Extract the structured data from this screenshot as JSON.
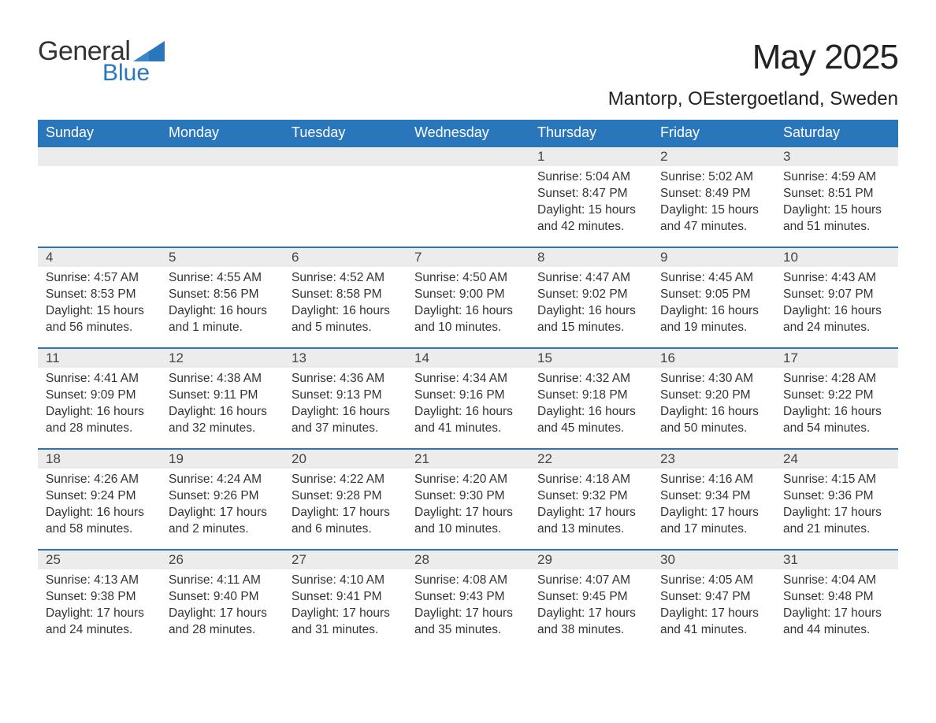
{
  "colors": {
    "brand_blue": "#2a76bb",
    "header_bg": "#2a76bb",
    "header_text": "#ffffff",
    "daynum_bg": "#ececec",
    "daynum_border": "#2a76bb",
    "body_text": "#333333",
    "page_bg": "#ffffff"
  },
  "typography": {
    "month_title_size_pt": 33,
    "location_size_pt": 18,
    "dayheader_size_pt": 14,
    "cell_size_pt": 12
  },
  "logo": {
    "line1": "General",
    "line2": "Blue"
  },
  "title": "May 2025",
  "location": "Mantorp, OEstergoetland, Sweden",
  "day_headers": [
    "Sunday",
    "Monday",
    "Tuesday",
    "Wednesday",
    "Thursday",
    "Friday",
    "Saturday"
  ],
  "weeks": [
    [
      null,
      null,
      null,
      null,
      {
        "n": "1",
        "sunrise": "Sunrise: 5:04 AM",
        "sunset": "Sunset: 8:47 PM",
        "daylight1": "Daylight: 15 hours",
        "daylight2": "and 42 minutes."
      },
      {
        "n": "2",
        "sunrise": "Sunrise: 5:02 AM",
        "sunset": "Sunset: 8:49 PM",
        "daylight1": "Daylight: 15 hours",
        "daylight2": "and 47 minutes."
      },
      {
        "n": "3",
        "sunrise": "Sunrise: 4:59 AM",
        "sunset": "Sunset: 8:51 PM",
        "daylight1": "Daylight: 15 hours",
        "daylight2": "and 51 minutes."
      }
    ],
    [
      {
        "n": "4",
        "sunrise": "Sunrise: 4:57 AM",
        "sunset": "Sunset: 8:53 PM",
        "daylight1": "Daylight: 15 hours",
        "daylight2": "and 56 minutes."
      },
      {
        "n": "5",
        "sunrise": "Sunrise: 4:55 AM",
        "sunset": "Sunset: 8:56 PM",
        "daylight1": "Daylight: 16 hours",
        "daylight2": "and 1 minute."
      },
      {
        "n": "6",
        "sunrise": "Sunrise: 4:52 AM",
        "sunset": "Sunset: 8:58 PM",
        "daylight1": "Daylight: 16 hours",
        "daylight2": "and 5 minutes."
      },
      {
        "n": "7",
        "sunrise": "Sunrise: 4:50 AM",
        "sunset": "Sunset: 9:00 PM",
        "daylight1": "Daylight: 16 hours",
        "daylight2": "and 10 minutes."
      },
      {
        "n": "8",
        "sunrise": "Sunrise: 4:47 AM",
        "sunset": "Sunset: 9:02 PM",
        "daylight1": "Daylight: 16 hours",
        "daylight2": "and 15 minutes."
      },
      {
        "n": "9",
        "sunrise": "Sunrise: 4:45 AM",
        "sunset": "Sunset: 9:05 PM",
        "daylight1": "Daylight: 16 hours",
        "daylight2": "and 19 minutes."
      },
      {
        "n": "10",
        "sunrise": "Sunrise: 4:43 AM",
        "sunset": "Sunset: 9:07 PM",
        "daylight1": "Daylight: 16 hours",
        "daylight2": "and 24 minutes."
      }
    ],
    [
      {
        "n": "11",
        "sunrise": "Sunrise: 4:41 AM",
        "sunset": "Sunset: 9:09 PM",
        "daylight1": "Daylight: 16 hours",
        "daylight2": "and 28 minutes."
      },
      {
        "n": "12",
        "sunrise": "Sunrise: 4:38 AM",
        "sunset": "Sunset: 9:11 PM",
        "daylight1": "Daylight: 16 hours",
        "daylight2": "and 32 minutes."
      },
      {
        "n": "13",
        "sunrise": "Sunrise: 4:36 AM",
        "sunset": "Sunset: 9:13 PM",
        "daylight1": "Daylight: 16 hours",
        "daylight2": "and 37 minutes."
      },
      {
        "n": "14",
        "sunrise": "Sunrise: 4:34 AM",
        "sunset": "Sunset: 9:16 PM",
        "daylight1": "Daylight: 16 hours",
        "daylight2": "and 41 minutes."
      },
      {
        "n": "15",
        "sunrise": "Sunrise: 4:32 AM",
        "sunset": "Sunset: 9:18 PM",
        "daylight1": "Daylight: 16 hours",
        "daylight2": "and 45 minutes."
      },
      {
        "n": "16",
        "sunrise": "Sunrise: 4:30 AM",
        "sunset": "Sunset: 9:20 PM",
        "daylight1": "Daylight: 16 hours",
        "daylight2": "and 50 minutes."
      },
      {
        "n": "17",
        "sunrise": "Sunrise: 4:28 AM",
        "sunset": "Sunset: 9:22 PM",
        "daylight1": "Daylight: 16 hours",
        "daylight2": "and 54 minutes."
      }
    ],
    [
      {
        "n": "18",
        "sunrise": "Sunrise: 4:26 AM",
        "sunset": "Sunset: 9:24 PM",
        "daylight1": "Daylight: 16 hours",
        "daylight2": "and 58 minutes."
      },
      {
        "n": "19",
        "sunrise": "Sunrise: 4:24 AM",
        "sunset": "Sunset: 9:26 PM",
        "daylight1": "Daylight: 17 hours",
        "daylight2": "and 2 minutes."
      },
      {
        "n": "20",
        "sunrise": "Sunrise: 4:22 AM",
        "sunset": "Sunset: 9:28 PM",
        "daylight1": "Daylight: 17 hours",
        "daylight2": "and 6 minutes."
      },
      {
        "n": "21",
        "sunrise": "Sunrise: 4:20 AM",
        "sunset": "Sunset: 9:30 PM",
        "daylight1": "Daylight: 17 hours",
        "daylight2": "and 10 minutes."
      },
      {
        "n": "22",
        "sunrise": "Sunrise: 4:18 AM",
        "sunset": "Sunset: 9:32 PM",
        "daylight1": "Daylight: 17 hours",
        "daylight2": "and 13 minutes."
      },
      {
        "n": "23",
        "sunrise": "Sunrise: 4:16 AM",
        "sunset": "Sunset: 9:34 PM",
        "daylight1": "Daylight: 17 hours",
        "daylight2": "and 17 minutes."
      },
      {
        "n": "24",
        "sunrise": "Sunrise: 4:15 AM",
        "sunset": "Sunset: 9:36 PM",
        "daylight1": "Daylight: 17 hours",
        "daylight2": "and 21 minutes."
      }
    ],
    [
      {
        "n": "25",
        "sunrise": "Sunrise: 4:13 AM",
        "sunset": "Sunset: 9:38 PM",
        "daylight1": "Daylight: 17 hours",
        "daylight2": "and 24 minutes."
      },
      {
        "n": "26",
        "sunrise": "Sunrise: 4:11 AM",
        "sunset": "Sunset: 9:40 PM",
        "daylight1": "Daylight: 17 hours",
        "daylight2": "and 28 minutes."
      },
      {
        "n": "27",
        "sunrise": "Sunrise: 4:10 AM",
        "sunset": "Sunset: 9:41 PM",
        "daylight1": "Daylight: 17 hours",
        "daylight2": "and 31 minutes."
      },
      {
        "n": "28",
        "sunrise": "Sunrise: 4:08 AM",
        "sunset": "Sunset: 9:43 PM",
        "daylight1": "Daylight: 17 hours",
        "daylight2": "and 35 minutes."
      },
      {
        "n": "29",
        "sunrise": "Sunrise: 4:07 AM",
        "sunset": "Sunset: 9:45 PM",
        "daylight1": "Daylight: 17 hours",
        "daylight2": "and 38 minutes."
      },
      {
        "n": "30",
        "sunrise": "Sunrise: 4:05 AM",
        "sunset": "Sunset: 9:47 PM",
        "daylight1": "Daylight: 17 hours",
        "daylight2": "and 41 minutes."
      },
      {
        "n": "31",
        "sunrise": "Sunrise: 4:04 AM",
        "sunset": "Sunset: 9:48 PM",
        "daylight1": "Daylight: 17 hours",
        "daylight2": "and 44 minutes."
      }
    ]
  ]
}
